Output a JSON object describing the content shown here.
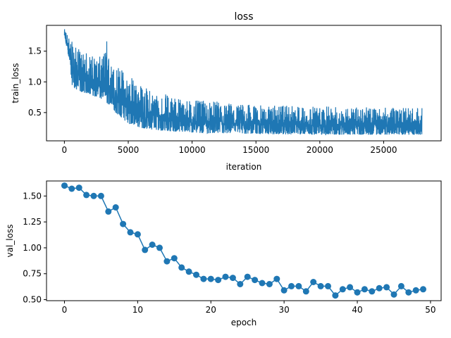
{
  "chart_data": [
    {
      "type": "line",
      "title": "loss",
      "xlabel": "iteration",
      "ylabel": "train_loss",
      "xlim": [
        -1400,
        29500
      ],
      "ylim": [
        0.04,
        1.92
      ],
      "xticks": [
        0,
        5000,
        10000,
        15000,
        20000,
        25000
      ],
      "xtick_labels": [
        "0",
        "5000",
        "10000",
        "15000",
        "20000",
        "25000"
      ],
      "yticks": [
        0.5,
        1.0,
        1.5
      ],
      "ytick_labels": [
        "0.5",
        "1.0",
        "1.5"
      ],
      "grid": false,
      "series": [
        {
          "color": "#1f77b4",
          "x_max": 28000,
          "envelope": [
            {
              "x": 0,
              "lo": 1.7,
              "hi": 1.86
            },
            {
              "x": 300,
              "lo": 1.45,
              "hi": 1.8
            },
            {
              "x": 600,
              "lo": 0.95,
              "hi": 1.65
            },
            {
              "x": 1000,
              "lo": 0.85,
              "hi": 1.55
            },
            {
              "x": 2000,
              "lo": 0.8,
              "hi": 1.45
            },
            {
              "x": 3000,
              "lo": 0.7,
              "hi": 1.4
            },
            {
              "x": 3300,
              "lo": 0.65,
              "hi": 1.73
            },
            {
              "x": 3600,
              "lo": 0.62,
              "hi": 1.3
            },
            {
              "x": 4000,
              "lo": 0.5,
              "hi": 1.3
            },
            {
              "x": 5000,
              "lo": 0.32,
              "hi": 1.15
            },
            {
              "x": 6000,
              "lo": 0.25,
              "hi": 0.95
            },
            {
              "x": 7000,
              "lo": 0.22,
              "hi": 0.85
            },
            {
              "x": 8000,
              "lo": 0.2,
              "hi": 0.8
            },
            {
              "x": 10000,
              "lo": 0.17,
              "hi": 0.7
            },
            {
              "x": 12000,
              "lo": 0.16,
              "hi": 0.68
            },
            {
              "x": 15000,
              "lo": 0.15,
              "hi": 0.62
            },
            {
              "x": 20000,
              "lo": 0.14,
              "hi": 0.6
            },
            {
              "x": 25000,
              "lo": 0.14,
              "hi": 0.58
            },
            {
              "x": 28000,
              "lo": 0.14,
              "hi": 0.58
            }
          ]
        }
      ]
    },
    {
      "type": "line",
      "title": "",
      "xlabel": "epoch",
      "ylabel": "val_loss",
      "xlim": [
        -2.45,
        51.45
      ],
      "ylim": [
        0.49,
        1.645
      ],
      "xticks": [
        0,
        10,
        20,
        30,
        40,
        50
      ],
      "xtick_labels": [
        "0",
        "10",
        "20",
        "30",
        "40",
        "50"
      ],
      "yticks": [
        0.5,
        0.75,
        1.0,
        1.25,
        1.5
      ],
      "ytick_labels": [
        "0.50",
        "0.75",
        "1.00",
        "1.25",
        "1.50"
      ],
      "grid": false,
      "marker": "circle",
      "series": [
        {
          "color": "#1f77b4",
          "x": [
            0,
            1,
            2,
            3,
            4,
            5,
            6,
            7,
            8,
            9,
            10,
            11,
            12,
            13,
            14,
            15,
            16,
            17,
            18,
            19,
            20,
            21,
            22,
            23,
            24,
            25,
            26,
            27,
            28,
            29,
            30,
            31,
            32,
            33,
            34,
            35,
            36,
            37,
            38,
            39,
            40,
            41,
            42,
            43,
            44,
            45,
            46,
            47,
            48,
            49
          ],
          "values": [
            1.6,
            1.57,
            1.58,
            1.51,
            1.5,
            1.5,
            1.35,
            1.39,
            1.23,
            1.15,
            1.13,
            0.98,
            1.03,
            1.0,
            0.87,
            0.9,
            0.81,
            0.77,
            0.74,
            0.7,
            0.7,
            0.69,
            0.72,
            0.71,
            0.65,
            0.72,
            0.69,
            0.66,
            0.65,
            0.7,
            0.59,
            0.63,
            0.63,
            0.58,
            0.67,
            0.63,
            0.63,
            0.54,
            0.6,
            0.62,
            0.57,
            0.6,
            0.58,
            0.61,
            0.62,
            0.55,
            0.63,
            0.57,
            0.59,
            0.6
          ]
        }
      ]
    }
  ]
}
